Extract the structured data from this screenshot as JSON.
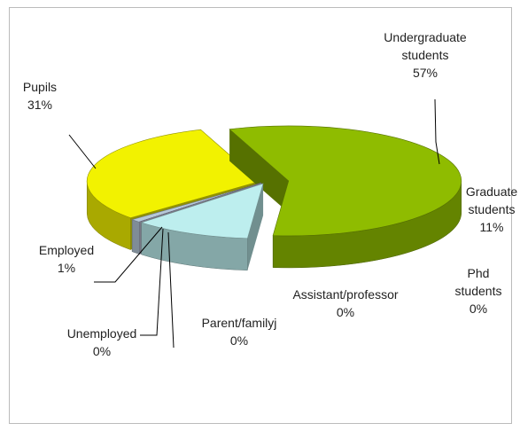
{
  "chart_data": {
    "type": "pie3d",
    "categories": [
      "Undergraduate students",
      "Graduate students",
      "Phd students",
      "Assistant/professor",
      "Parent/familyj",
      "Unemployed",
      "Employed",
      "Pupils"
    ],
    "values": [
      57,
      11,
      0,
      0,
      0,
      0,
      1,
      31
    ],
    "value_labels": [
      "57%",
      "11%",
      "0%",
      "0%",
      "0%",
      "0%",
      "1%",
      "31%"
    ],
    "colors": [
      "#8fbc00",
      "#bdeeee",
      "#4f81bd",
      "#1f3a8a",
      "#17376e",
      "#c9c6dc",
      "#b6c8d8",
      "#f2f200"
    ]
  }
}
